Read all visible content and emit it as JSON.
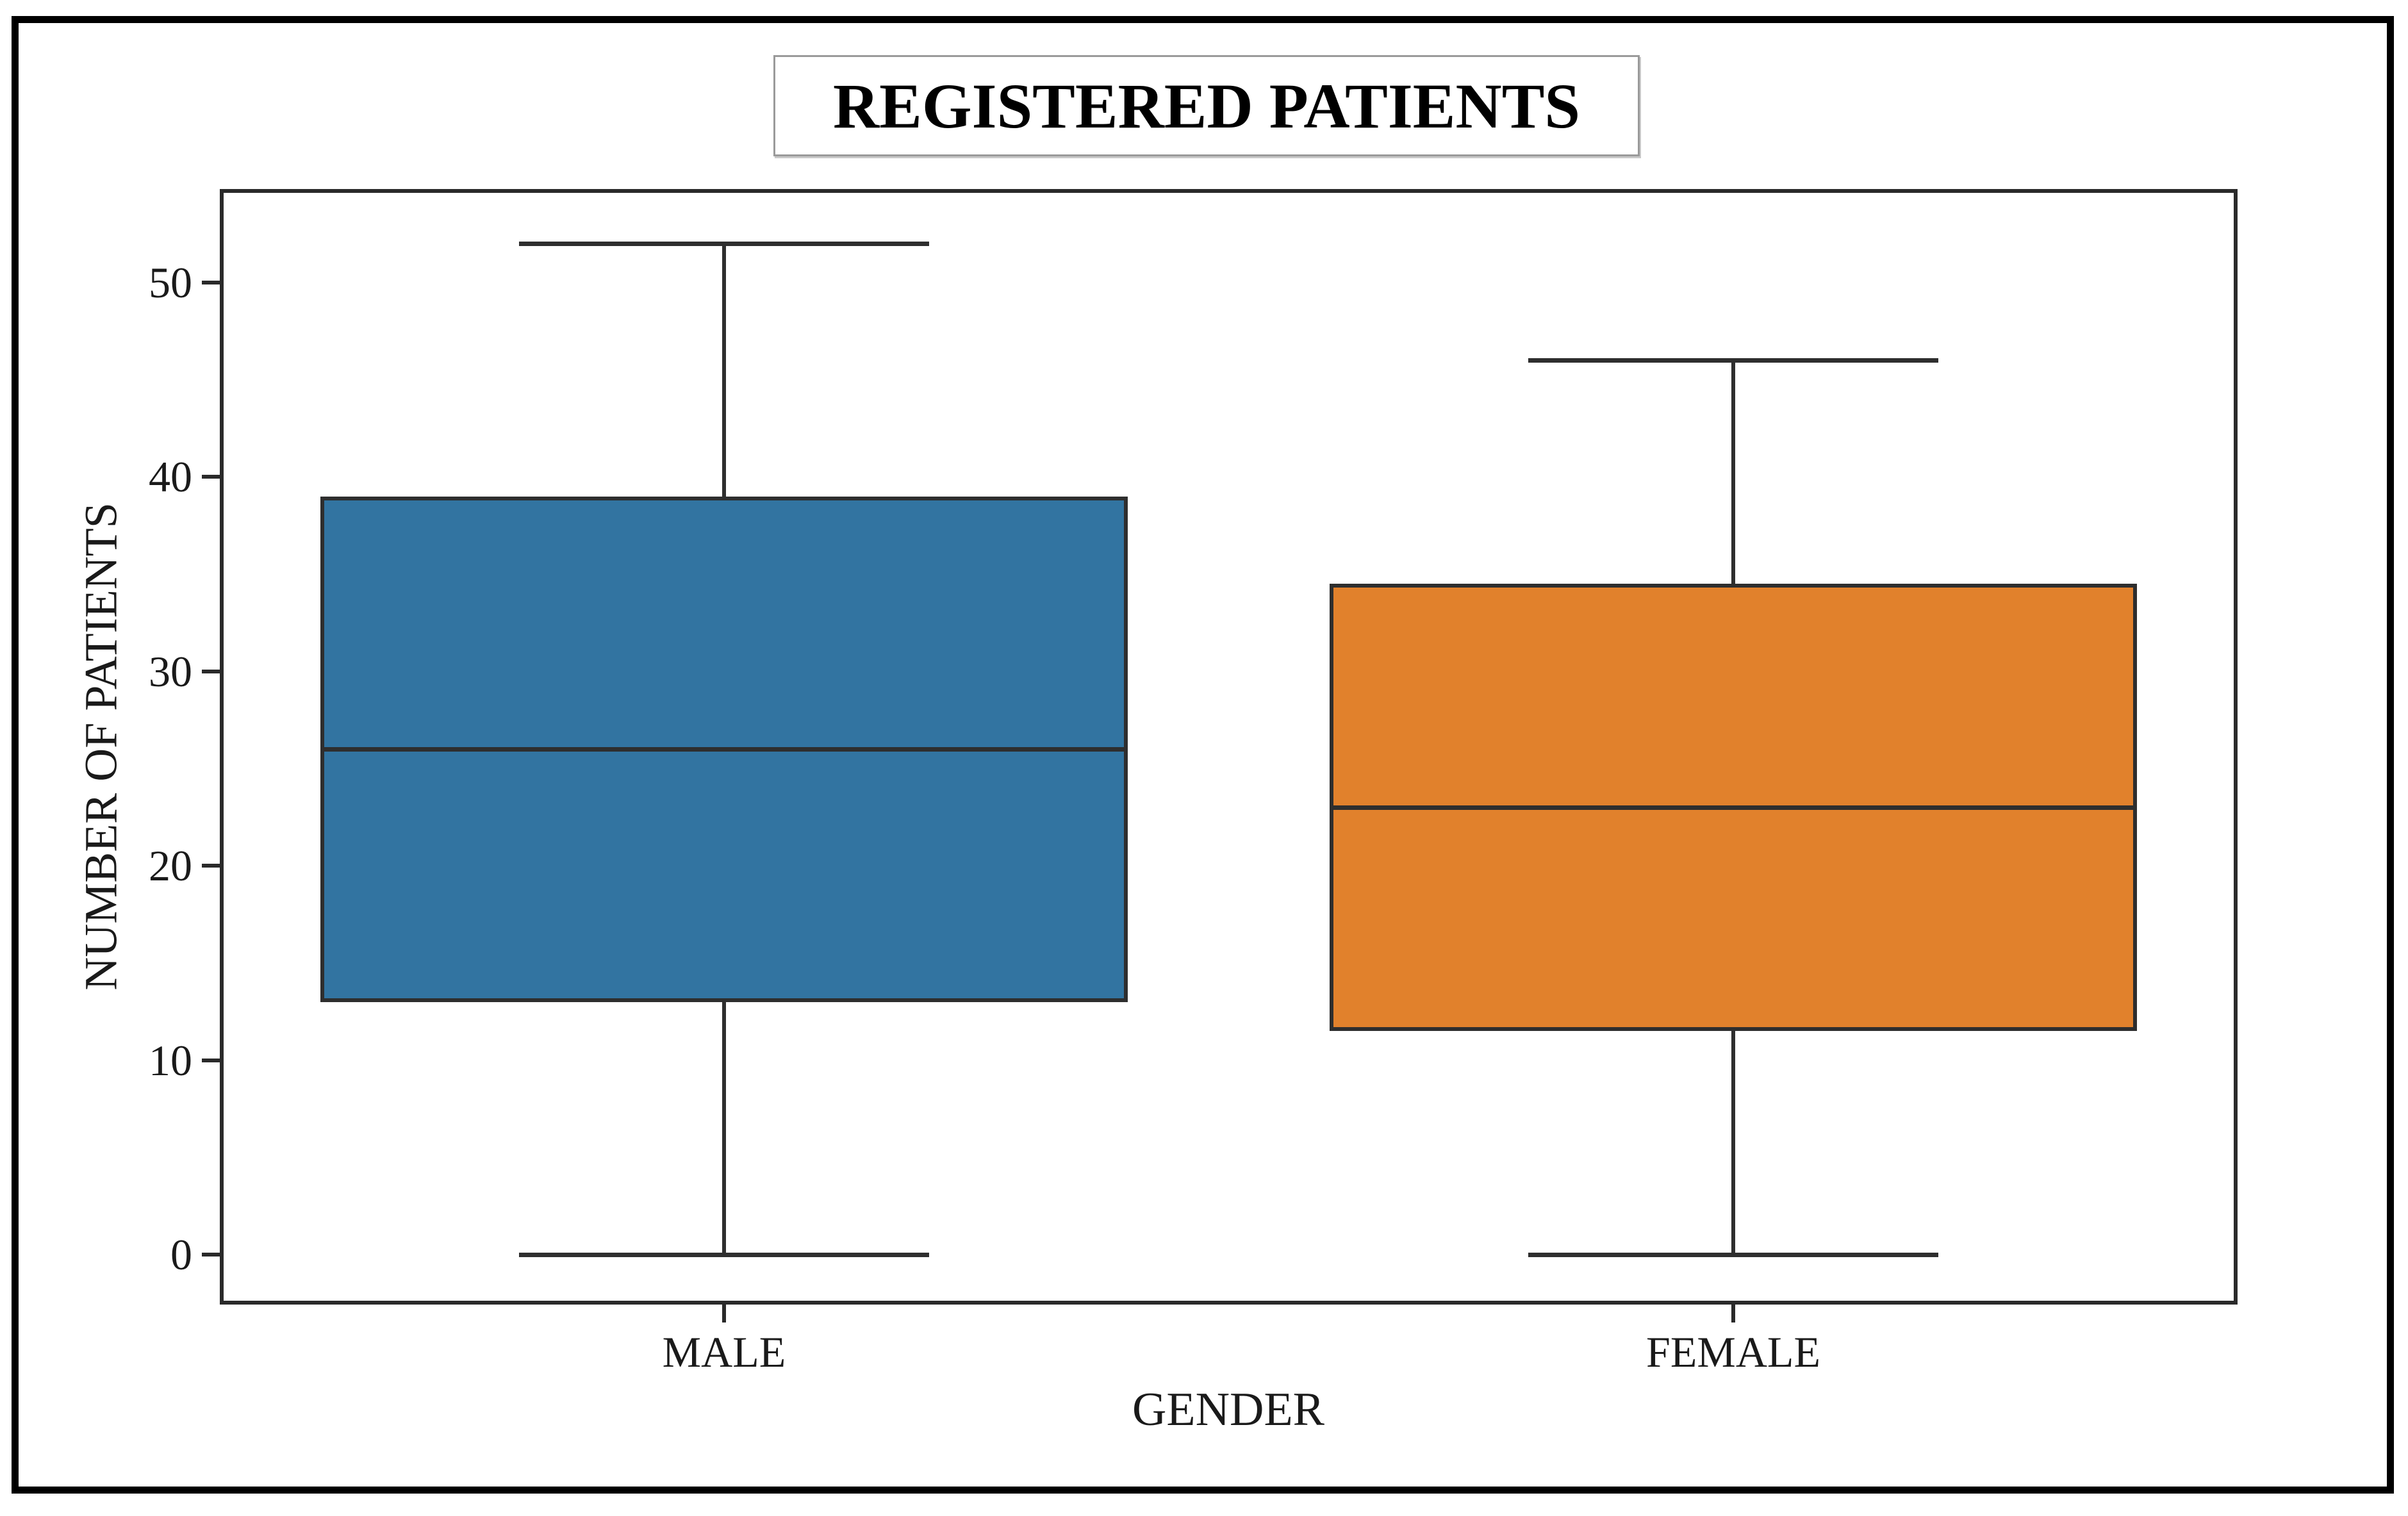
{
  "title": "REGISTERED PATIENTS",
  "axes": {
    "y_label": "NUMBER OF PATIENTS",
    "x_label": "GENDER",
    "y_ticks": [
      0,
      10,
      20,
      30,
      40,
      50
    ]
  },
  "colors": {
    "male_box": "#3274A1",
    "female_box": "#E1812C",
    "line": "#2E2E2E",
    "figure_border": "#000000",
    "title_border": "#9A9A9A",
    "background": "#FFFFFF"
  },
  "chart_data": {
    "type": "boxplot",
    "title": "REGISTERED PATIENTS",
    "xlabel": "GENDER",
    "ylabel": "NUMBER OF PATIENTS",
    "categories": [
      "MALE",
      "FEMALE"
    ],
    "y_ticks": [
      0,
      10,
      20,
      30,
      40,
      50
    ],
    "ylim": [
      -2.5,
      54.7
    ],
    "grid": false,
    "legend": false,
    "series": [
      {
        "name": "MALE",
        "min": 0,
        "q1": 13,
        "median": 26,
        "q3": 39,
        "max": 52,
        "fliers": [],
        "color": "#3274A1"
      },
      {
        "name": "FEMALE",
        "min": 0,
        "q1": 11.5,
        "median": 23,
        "q3": 34.5,
        "max": 46,
        "fliers": [],
        "color": "#E1812C"
      }
    ]
  }
}
